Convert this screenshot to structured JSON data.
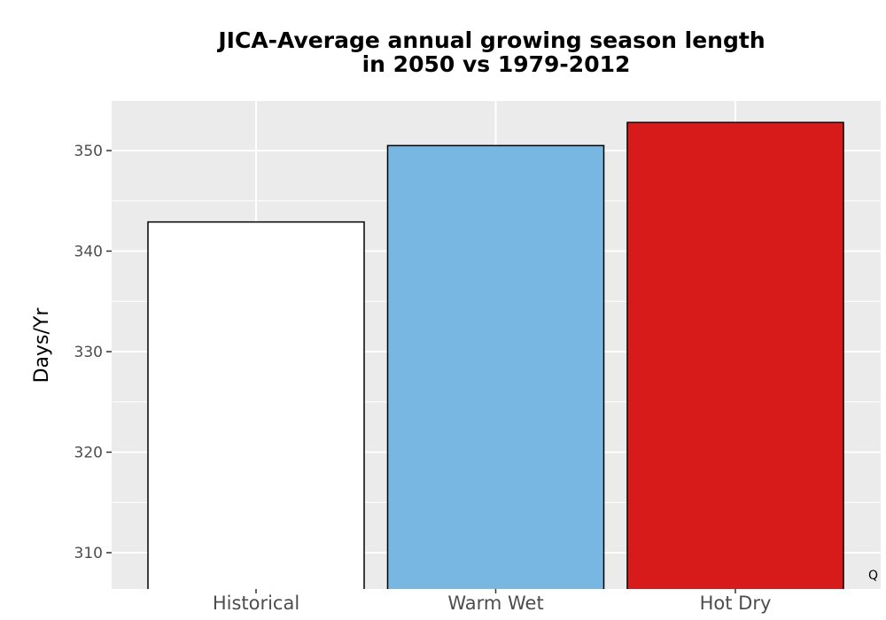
{
  "chart_data": {
    "type": "bar",
    "title_lines": [
      "JICA-Average annual growing season length",
      "in 2050 vs 1979-2012"
    ],
    "xlabel": "",
    "ylabel": "Days/Yr",
    "categories": [
      "Historical",
      "Warm Wet",
      "Hot Dry"
    ],
    "values": [
      342.9,
      350.5,
      352.8
    ],
    "colors": [
      "#ffffff",
      "#78b7e1",
      "#d71b1b"
    ],
    "ylim": [
      305,
      355
    ],
    "yticks": [
      310,
      320,
      330,
      340,
      350
    ],
    "ytick_labels": [
      "310",
      "320",
      "330",
      "340",
      "350"
    ],
    "grid": true,
    "panel_background": "#ebebeb",
    "corner_label": "Q"
  }
}
